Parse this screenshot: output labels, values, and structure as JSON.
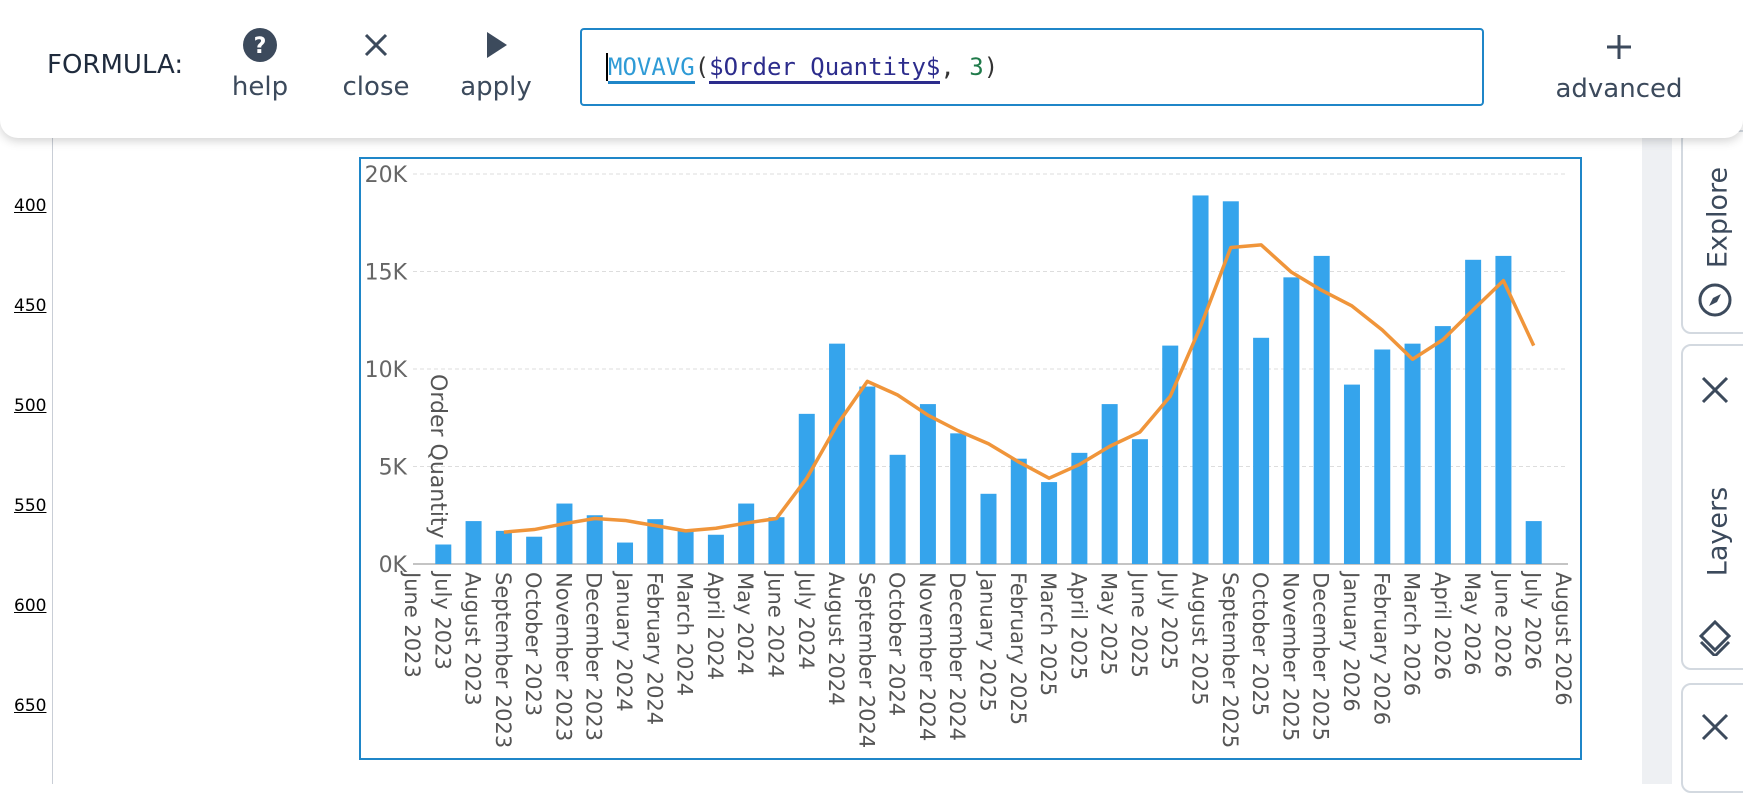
{
  "toolbar": {
    "label": "FORMULA:",
    "buttons": [
      "help",
      "close",
      "apply",
      "advanced"
    ],
    "formula": [
      "MOVAVG",
      "(",
      "$Order Quantity$",
      ", ",
      "3",
      ")"
    ]
  },
  "ruler": [
    "400",
    "450",
    "500",
    "550",
    "600",
    "650"
  ],
  "side_tabs": [
    "Explore",
    "Layers"
  ],
  "chart_data": {
    "type": "bar",
    "y_label": "Order Quantity",
    "categories": [
      "June 2023",
      "July 2023",
      "August 2023",
      "September 2023",
      "October 2023",
      "November 2023",
      "December 2023",
      "January 2024",
      "February 2024",
      "March 2024",
      "April 2024",
      "May 2024",
      "June 2024",
      "July 2024",
      "August 2024",
      "September 2024",
      "October 2024",
      "November 2024",
      "December 2024",
      "January 2025",
      "February 2025",
      "March 2025",
      "April 2025",
      "May 2025",
      "June 2025",
      "July 2025",
      "August 2025",
      "September 2025",
      "October 2025",
      "November 2025",
      "December 2025",
      "January 2026",
      "February 2026",
      "March 2026",
      "April 2026",
      "May 2026",
      "June 2026",
      "July 2026",
      "August 2026"
    ],
    "series": [
      {
        "type": "bar",
        "color": "#35a4ec",
        "values": [
          null,
          1000,
          2200,
          1700,
          1400,
          3100,
          2500,
          1100,
          2300,
          1700,
          1500,
          3100,
          2400,
          7700,
          11300,
          9100,
          5600,
          8200,
          6700,
          3600,
          5400,
          4200,
          5700,
          8200,
          6400,
          11200,
          18900,
          18600,
          11600,
          14700,
          15800,
          9200,
          11000,
          11300,
          12200,
          15600,
          15800,
          2200,
          null
        ]
      },
      {
        "type": "line",
        "color": "#f0953a",
        "values": [
          null,
          null,
          null,
          1633,
          1767,
          2067,
          2333,
          2233,
          1967,
          1700,
          1833,
          2100,
          2333,
          4400,
          7133,
          9367,
          8667,
          7633,
          6833,
          6167,
          5233,
          4400,
          5100,
          6033,
          6767,
          8600,
          12167,
          16233,
          16367,
          14967,
          14033,
          13233,
          12000,
          10500,
          11500,
          13033,
          14533,
          11200,
          null
        ]
      }
    ],
    "ylim": [
      0,
      20000
    ],
    "yticks": [
      {
        "value": 0,
        "label": "0K"
      },
      {
        "value": 5000,
        "label": "5K"
      },
      {
        "value": 10000,
        "label": "10K"
      },
      {
        "value": 15000,
        "label": "15K"
      },
      {
        "value": 20000,
        "label": "20K"
      }
    ],
    "grid": true
  }
}
